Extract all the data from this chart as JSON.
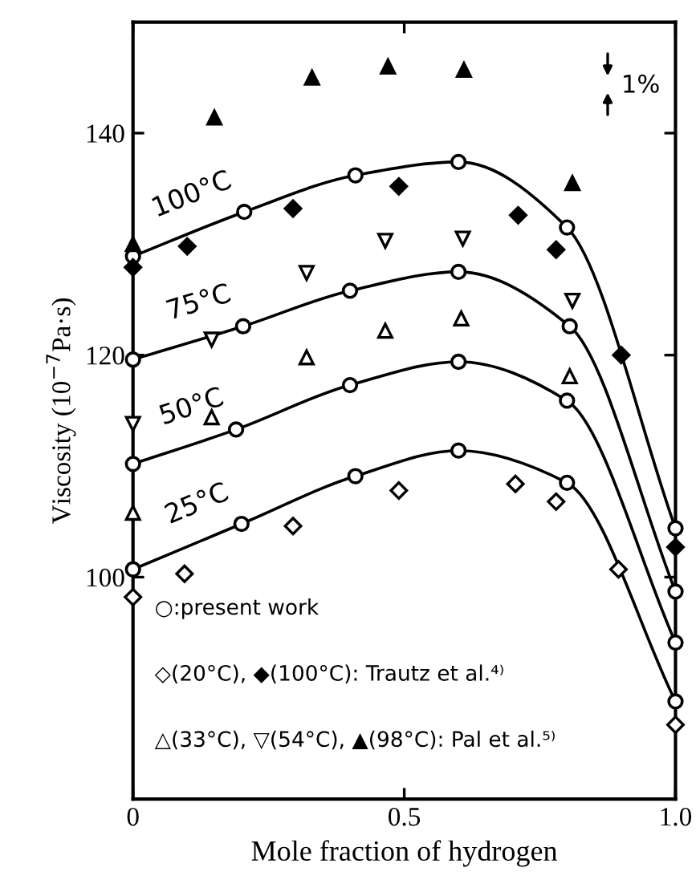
{
  "chart_data": {
    "type": "line",
    "xlabel": "Mole fraction of hydrogen",
    "ylabel": "Viscosity (10$^{−7}$Pa·s)",
    "xlim": [
      0,
      1.0
    ],
    "ylim": [
      80,
      150
    ],
    "xticks": [
      0,
      0.5,
      {
        "value": 1.0,
        "label": "1.0"
      }
    ],
    "yticks": [
      100,
      120,
      140
    ],
    "grid": false,
    "legend": false,
    "series": [
      {
        "name": "100°C",
        "type": "line",
        "marker": "circle",
        "color": "#000000",
        "x": [
          0,
          0.205,
          0.41,
          0.6,
          0.8,
          1.0
        ],
        "values": [
          128.9,
          132.9,
          136.2,
          137.4,
          131.5,
          104.4
        ]
      },
      {
        "name": "75°C",
        "type": "line",
        "marker": "circle",
        "color": "#000000",
        "x": [
          0,
          0.203,
          0.4,
          0.6,
          0.805,
          1.0
        ],
        "values": [
          119.6,
          122.6,
          125.8,
          127.5,
          122.6,
          98.7
        ]
      },
      {
        "name": "50°C",
        "type": "line",
        "marker": "circle",
        "color": "#000000",
        "x": [
          0,
          0.19,
          0.4,
          0.6,
          0.8,
          1.0
        ],
        "values": [
          110.2,
          113.3,
          117.3,
          119.4,
          115.9,
          94.1
        ]
      },
      {
        "name": "25°C",
        "type": "line",
        "marker": "circle",
        "color": "#000000",
        "x": [
          0,
          0.2,
          0.41,
          0.6,
          0.8,
          1.0
        ],
        "values": [
          100.7,
          104.8,
          109.1,
          111.4,
          108.5,
          88.8
        ]
      },
      {
        "type": "scatter",
        "marker": "diamond",
        "color": "#ffffff",
        "x": [
          0,
          0.095,
          0.295,
          0.49,
          0.705,
          0.78,
          0.895,
          1.0
        ],
        "values": [
          98.2,
          100.3,
          104.6,
          107.8,
          108.4,
          106.8,
          100.7,
          86.7
        ]
      },
      {
        "type": "scatter",
        "marker": "diamond",
        "color": "#000000",
        "x": [
          0,
          0.1,
          0.295,
          0.49,
          0.71,
          0.78,
          0.9,
          1.0
        ],
        "values": [
          127.9,
          129.8,
          133.2,
          135.2,
          132.6,
          129.5,
          120.0,
          102.7
        ]
      },
      {
        "type": "scatter",
        "marker": "triangle",
        "color": "#ffffff",
        "x": [
          0,
          0.145,
          0.32,
          0.465,
          0.605,
          0.805
        ],
        "values": [
          105.8,
          114.4,
          119.8,
          122.2,
          123.3,
          118.1
        ]
      },
      {
        "type": "scatter",
        "marker": "triangle_down",
        "color": "#ffffff",
        "x": [
          0,
          0.145,
          0.32,
          0.465,
          0.608,
          0.81
        ],
        "values": [
          113.8,
          121.4,
          127.4,
          130.3,
          130.5,
          124.9
        ]
      },
      {
        "type": "scatter",
        "marker": "triangle",
        "color": "#000000",
        "x": [
          0,
          0.15,
          0.33,
          0.47,
          0.61,
          0.81
        ],
        "values": [
          130.0,
          141.4,
          145.0,
          146.0,
          145.7,
          135.5
        ]
      }
    ],
    "annotations": [
      "1%",
      "○:present work",
      "◇(20°C), ◆(100°C): Trautz et al.⁴⁾",
      "△(33°C), ▽(54°C), ▲(98°C): Pal et al.⁵⁾"
    ]
  }
}
